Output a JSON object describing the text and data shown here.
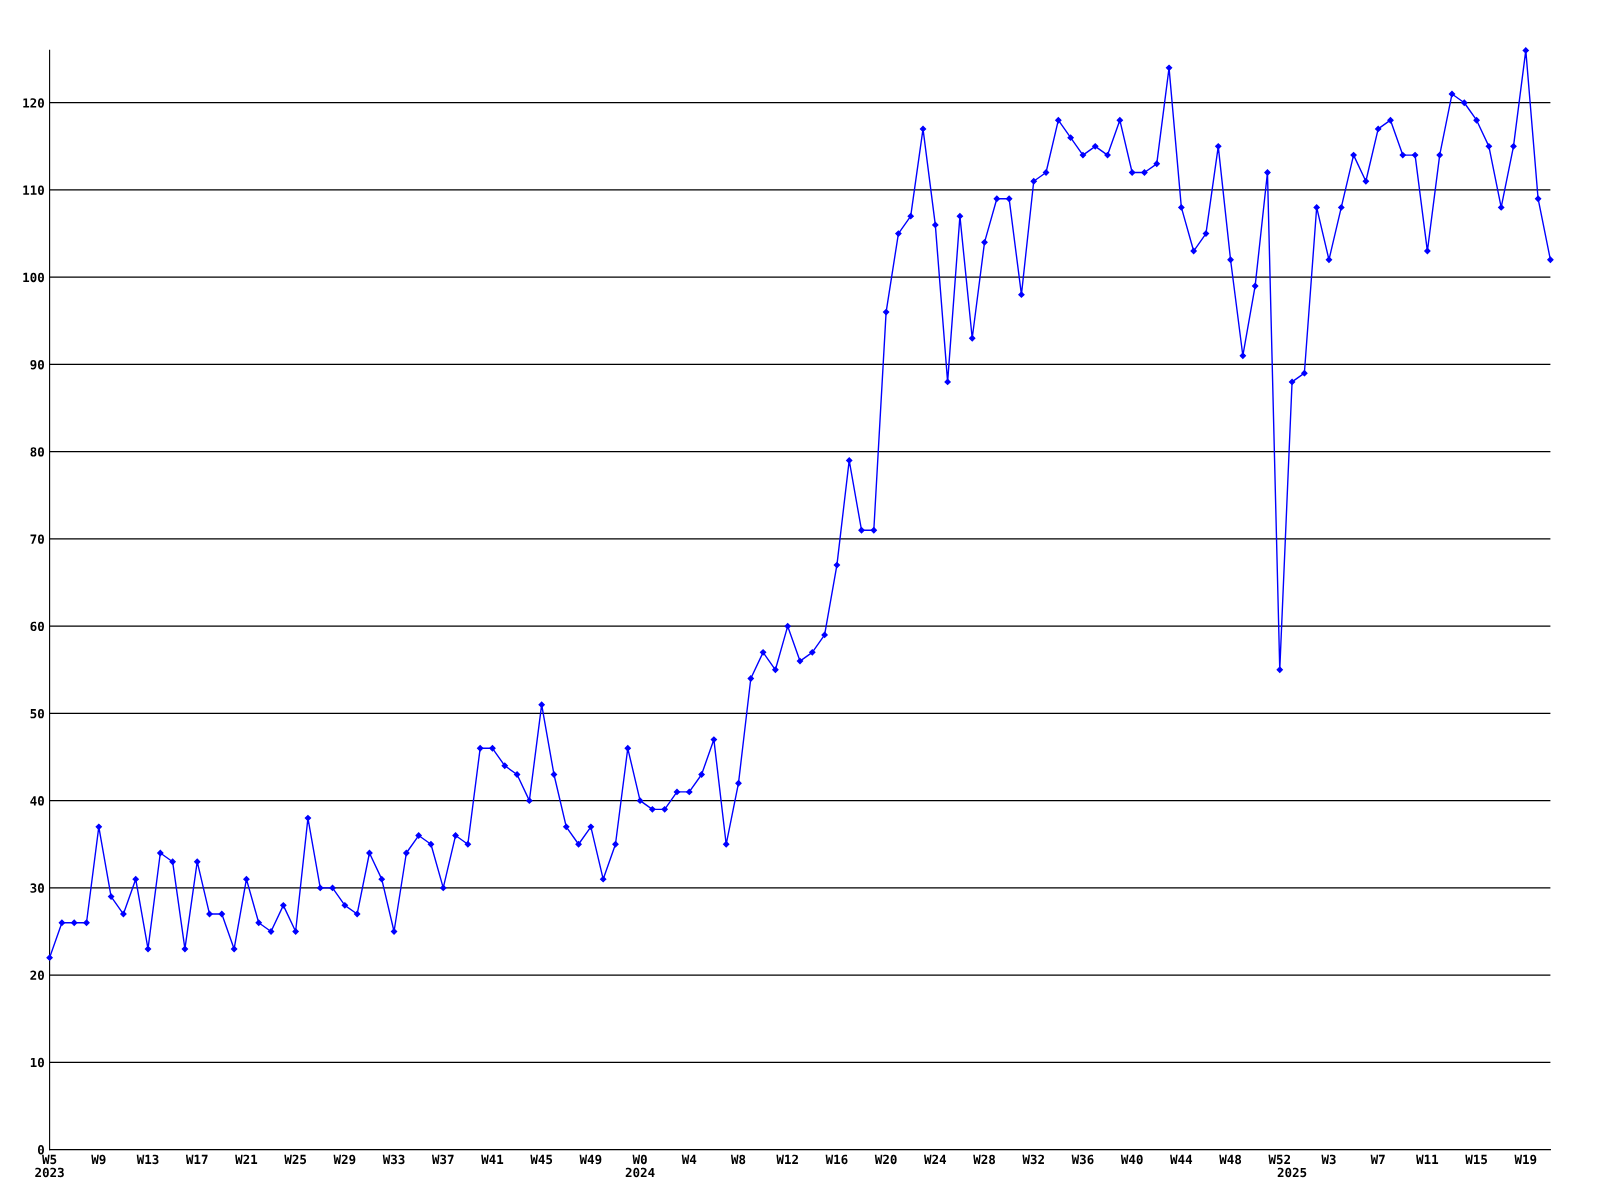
{
  "chart_data": {
    "type": "line",
    "categories": [
      "W5\n2023",
      null,
      null,
      null,
      "W9",
      null,
      null,
      null,
      "W13",
      null,
      null,
      null,
      "W17",
      null,
      null,
      null,
      "W21",
      null,
      null,
      null,
      "W25",
      null,
      null,
      null,
      "W29",
      null,
      null,
      null,
      "W33",
      null,
      null,
      null,
      "W37",
      null,
      null,
      null,
      "W41",
      null,
      null,
      null,
      "W45",
      null,
      null,
      null,
      "W49",
      null,
      null,
      null,
      "W0\n2024",
      null,
      null,
      null,
      "W4",
      null,
      null,
      null,
      "W8",
      null,
      null,
      null,
      "W12",
      null,
      null,
      null,
      "W16",
      null,
      null,
      null,
      "W20",
      null,
      null,
      null,
      "W24",
      null,
      null,
      null,
      "W28",
      null,
      null,
      null,
      "W32",
      null,
      null,
      null,
      "W36",
      null,
      null,
      null,
      "W40",
      null,
      null,
      null,
      "W44",
      null,
      null,
      null,
      "W48",
      null,
      null,
      null,
      "W52",
      "\n2025",
      null,
      null,
      "W3",
      null,
      null,
      null,
      "W7",
      null,
      null,
      null,
      "W11",
      null,
      null,
      null,
      "W15",
      null,
      null,
      null,
      "W19",
      null,
      null
    ],
    "series": [
      {
        "color": "#0000ff",
        "values": [
          22,
          26,
          26,
          26,
          37,
          29,
          27,
          31,
          23,
          34,
          33,
          23,
          33,
          27,
          27,
          23,
          31,
          26,
          25,
          28,
          25,
          38,
          30,
          30,
          28,
          27,
          34,
          31,
          25,
          34,
          36,
          35,
          30,
          36,
          35,
          46,
          46,
          44,
          43,
          40,
          51,
          43,
          37,
          35,
          37,
          31,
          35,
          46,
          40,
          39,
          39,
          41,
          41,
          43,
          47,
          35,
          42,
          54,
          57,
          55,
          60,
          56,
          57,
          59,
          67,
          79,
          71,
          71,
          96,
          105,
          107,
          117,
          106,
          88,
          107,
          93,
          104,
          109,
          109,
          98,
          111,
          112,
          118,
          116,
          114,
          115,
          114,
          118,
          112,
          112,
          113,
          124,
          108,
          103,
          105,
          115,
          102,
          91,
          99,
          112,
          55,
          88,
          89,
          108,
          102,
          108,
          114,
          111,
          117,
          118,
          114,
          114,
          103,
          114,
          121,
          120,
          118,
          115,
          108,
          115,
          126,
          109,
          102
        ]
      }
    ],
    "ylim": [
      0,
      126
    ],
    "yticks": [
      0,
      10,
      20,
      30,
      40,
      50,
      60,
      70,
      80,
      90,
      100,
      110,
      120
    ],
    "grid": "y",
    "marker": "diamond",
    "line_style": "solid"
  }
}
